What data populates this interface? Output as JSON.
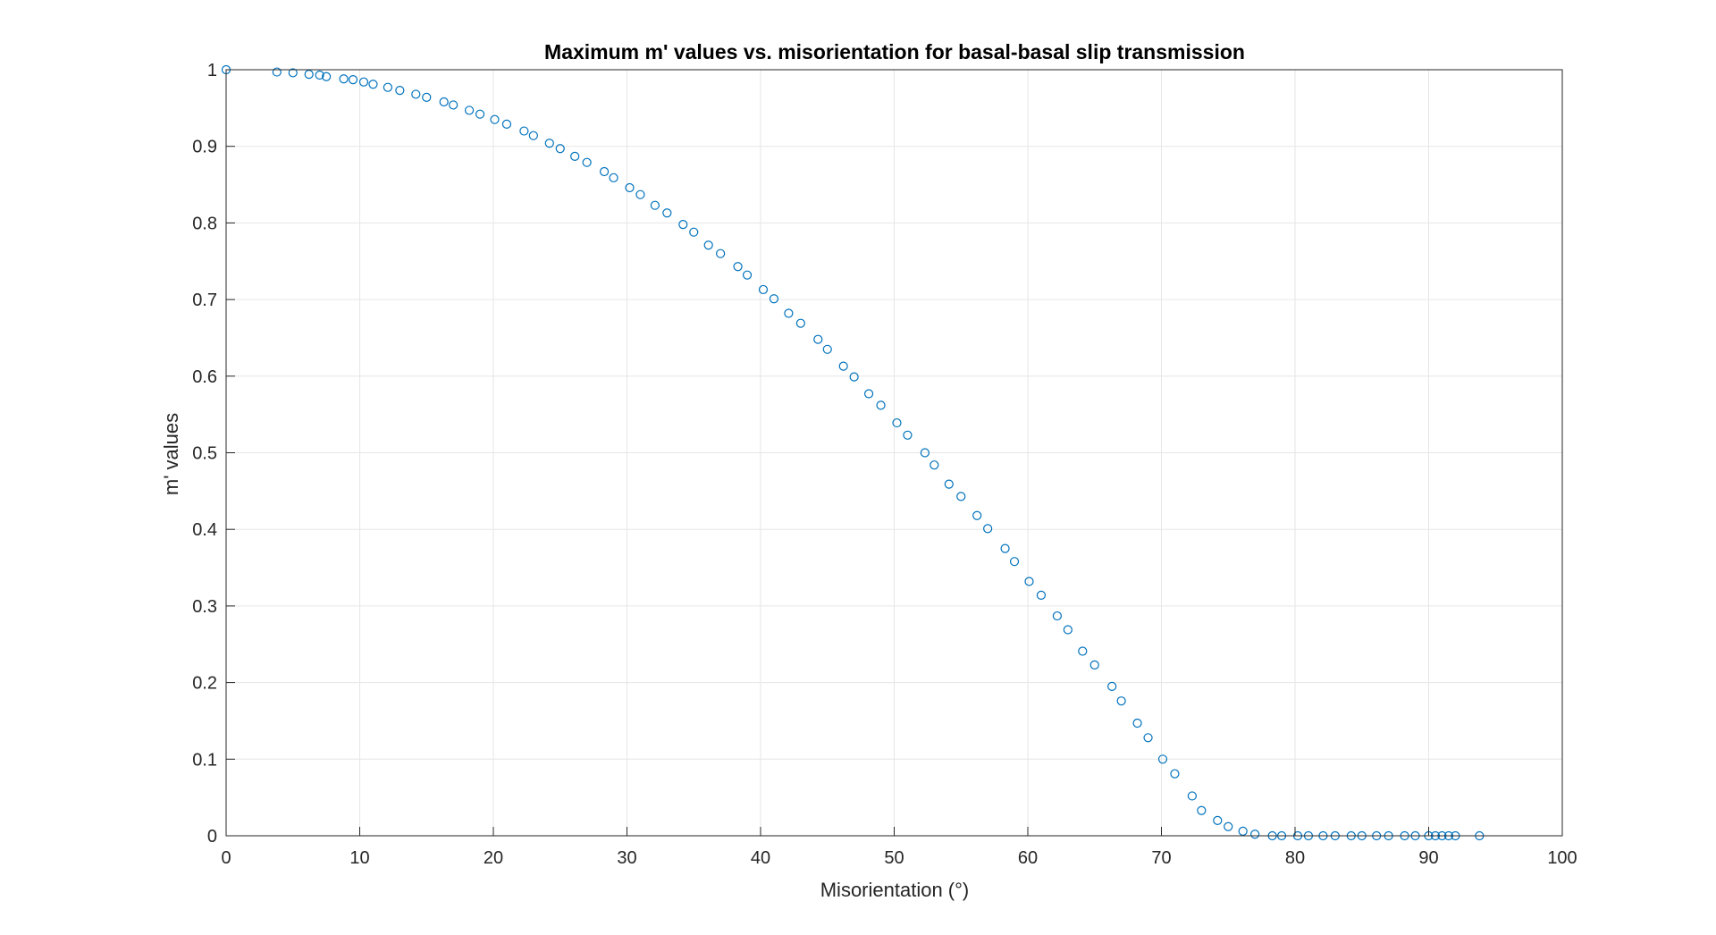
{
  "chart_data": {
    "type": "scatter",
    "title": "Maximum m' values vs. misorientation for basal-basal slip transmission",
    "xlabel": "Misorientation (°)",
    "ylabel": "m' values",
    "xlim": [
      0,
      100
    ],
    "ylim": [
      0,
      1
    ],
    "x_ticks": [
      "0",
      "10",
      "20",
      "30",
      "40",
      "50",
      "60",
      "70",
      "80",
      "90",
      "100"
    ],
    "y_ticks": [
      "0",
      "0.1",
      "0.2",
      "0.3",
      "0.4",
      "0.5",
      "0.6",
      "0.7",
      "0.8",
      "0.9",
      "1"
    ],
    "grid": true,
    "marker": "open-circle",
    "marker_color": "#0072BD",
    "series": [
      {
        "x": [
          0,
          3.8,
          5.0,
          6.2,
          7.0,
          7.5,
          8.8,
          9.5,
          10.3,
          11.0,
          12.1,
          13.0,
          14.2,
          15.0,
          16.3,
          17.0,
          18.2,
          19.0,
          20.1,
          21.0,
          22.3,
          23.0,
          24.2,
          25.0,
          26.1,
          27.0,
          28.3,
          29.0,
          30.2,
          31.0,
          32.1,
          33.0,
          34.2,
          35.0,
          36.1,
          37.0,
          38.3,
          39.0,
          40.2,
          41.0,
          42.1,
          43.0,
          44.3,
          45.0,
          46.2,
          47.0,
          48.1,
          49.0,
          50.2,
          51.0,
          52.3,
          53.0,
          54.1,
          55.0,
          56.2,
          57.0,
          58.3,
          59.0,
          60.1,
          61.0,
          62.2,
          63.0,
          64.1,
          65.0,
          66.3,
          67.0,
          68.2,
          69.0,
          70.1,
          71.0,
          72.3,
          73.0,
          74.2,
          75.0,
          76.1,
          77.0,
          78.3,
          79.0,
          80.2,
          81.0,
          82.1,
          83.0,
          84.2,
          85.0,
          86.1,
          87.0,
          88.2,
          89.0,
          90.0,
          90.5,
          91.0,
          91.5,
          92.0,
          93.8
        ],
        "y": [
          1.0,
          0.997,
          0.996,
          0.994,
          0.993,
          0.991,
          0.988,
          0.987,
          0.984,
          0.981,
          0.977,
          0.973,
          0.968,
          0.964,
          0.958,
          0.954,
          0.947,
          0.942,
          0.935,
          0.929,
          0.92,
          0.914,
          0.904,
          0.897,
          0.887,
          0.879,
          0.867,
          0.859,
          0.846,
          0.837,
          0.823,
          0.813,
          0.798,
          0.788,
          0.771,
          0.76,
          0.743,
          0.732,
          0.713,
          0.701,
          0.682,
          0.669,
          0.648,
          0.635,
          0.613,
          0.599,
          0.577,
          0.562,
          0.539,
          0.523,
          0.5,
          0.484,
          0.459,
          0.443,
          0.418,
          0.401,
          0.375,
          0.358,
          0.332,
          0.314,
          0.287,
          0.269,
          0.241,
          0.223,
          0.195,
          0.176,
          0.147,
          0.128,
          0.1,
          0.081,
          0.052,
          0.033,
          0.02,
          0.012,
          0.006,
          0.002,
          0.0,
          0.0,
          0.0,
          0.0,
          0.0,
          0.0,
          0.0,
          0.0,
          0.0,
          0.0,
          0.0,
          0.0,
          0.0,
          0.0,
          0.0,
          0.0,
          0.0,
          0.0
        ]
      }
    ]
  }
}
